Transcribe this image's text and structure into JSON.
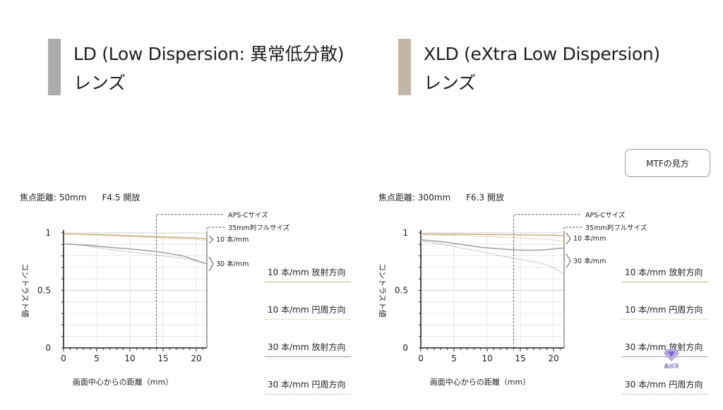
{
  "lenses": [
    {
      "title_line1": "LD (Low Dispersion: 異常低分散)",
      "title_line2": "レンズ",
      "bar_color": "#ababab"
    },
    {
      "title_line1": "XLD (eXtra Low Dispersion)",
      "title_line2": "レンズ",
      "bar_color": "#c2b6a8"
    }
  ],
  "mtf_button": "MTFの見方",
  "watermark_text": "鑫部落",
  "legend": [
    {
      "label": "10 本/mm 放射方向",
      "color": "#c9ad82",
      "style": "solid"
    },
    {
      "label": "10 本/mm 円周方向",
      "color": "#cfc08c",
      "style": "dotted"
    },
    {
      "label": "30 本/mm 放射方向",
      "color": "#9f9f9f",
      "style": "solid"
    },
    {
      "label": "30 本/mm 円周方向",
      "color": "#a5a5a5",
      "style": "dotted"
    }
  ],
  "chart_data": [
    {
      "type": "line",
      "conditions": {
        "focus": "焦点距離: 50mm",
        "aperture": "F4.5 開放"
      },
      "xlabel": "画面中心からの距離（mm）",
      "ylabel": "コントラスト値",
      "xlim": [
        0,
        21.6
      ],
      "ylim": [
        0,
        1
      ],
      "x_ticks": [
        0,
        5,
        10,
        15,
        20
      ],
      "y_ticks": [
        0,
        0.5,
        1
      ],
      "y_tick_labels": [
        "0",
        "0.5",
        "1"
      ],
      "aps_c_limit": 14,
      "full_frame_limit": 21.6,
      "annotations": {
        "aps_c": "APS-Cサイズ",
        "full_frame": "35mm判フルサイズ",
        "lp10": "10 本/mm",
        "lp30": "30 本/mm"
      },
      "series": [
        {
          "name": "10 本/mm 放射方向",
          "x": [
            0,
            5,
            10,
            15,
            20,
            21.6
          ],
          "values": [
            0.99,
            0.985,
            0.975,
            0.965,
            0.955,
            0.95
          ]
        },
        {
          "name": "10 本/mm 円周方向",
          "x": [
            0,
            5,
            10,
            15,
            20,
            21.6
          ],
          "values": [
            0.99,
            0.98,
            0.968,
            0.955,
            0.942,
            0.935
          ]
        },
        {
          "name": "30 本/mm 放射方向",
          "x": [
            0,
            3,
            6,
            9,
            12,
            15,
            18,
            20,
            21.6
          ],
          "values": [
            0.905,
            0.895,
            0.88,
            0.865,
            0.85,
            0.83,
            0.8,
            0.76,
            0.73
          ]
        },
        {
          "name": "30 本/mm 円周方向",
          "x": [
            0,
            3,
            6,
            9,
            12,
            15,
            18,
            20,
            21.6
          ],
          "values": [
            0.905,
            0.89,
            0.865,
            0.84,
            0.82,
            0.8,
            0.78,
            0.755,
            0.73
          ]
        }
      ]
    },
    {
      "type": "line",
      "conditions": {
        "focus": "焦点距離: 300mm",
        "aperture": "F6.3 開放"
      },
      "xlabel": "画面中心からの距離（mm）",
      "ylabel": "コントラスト値",
      "xlim": [
        0,
        21.6
      ],
      "ylim": [
        0,
        1
      ],
      "x_ticks": [
        0,
        5,
        10,
        15,
        20
      ],
      "y_ticks": [
        0,
        0.5,
        1
      ],
      "y_tick_labels": [
        "0",
        "0.5",
        "1"
      ],
      "aps_c_limit": 14,
      "full_frame_limit": 21.6,
      "annotations": {
        "aps_c": "APS-Cサイズ",
        "full_frame": "35mm判フルサイズ",
        "lp10": "10 本/mm",
        "lp30": "30 本/mm"
      },
      "series": [
        {
          "name": "10 本/mm 放射方向",
          "x": [
            0,
            5,
            10,
            15,
            20,
            21.6
          ],
          "values": [
            0.99,
            0.988,
            0.985,
            0.982,
            0.98,
            0.975
          ]
        },
        {
          "name": "10 本/mm 円周方向",
          "x": [
            0,
            5,
            10,
            15,
            20,
            21.6
          ],
          "values": [
            0.985,
            0.978,
            0.968,
            0.955,
            0.94,
            0.925
          ]
        },
        {
          "name": "30 本/mm 放射方向",
          "x": [
            0,
            3,
            6,
            9,
            12,
            15,
            18,
            20,
            21.6
          ],
          "values": [
            0.94,
            0.925,
            0.9,
            0.875,
            0.86,
            0.85,
            0.85,
            0.86,
            0.87
          ]
        },
        {
          "name": "30 本/mm 円周方向",
          "x": [
            0,
            3,
            6,
            9,
            12,
            15,
            18,
            20,
            21.6
          ],
          "values": [
            0.93,
            0.905,
            0.87,
            0.84,
            0.8,
            0.77,
            0.74,
            0.7,
            0.64
          ]
        }
      ]
    }
  ]
}
